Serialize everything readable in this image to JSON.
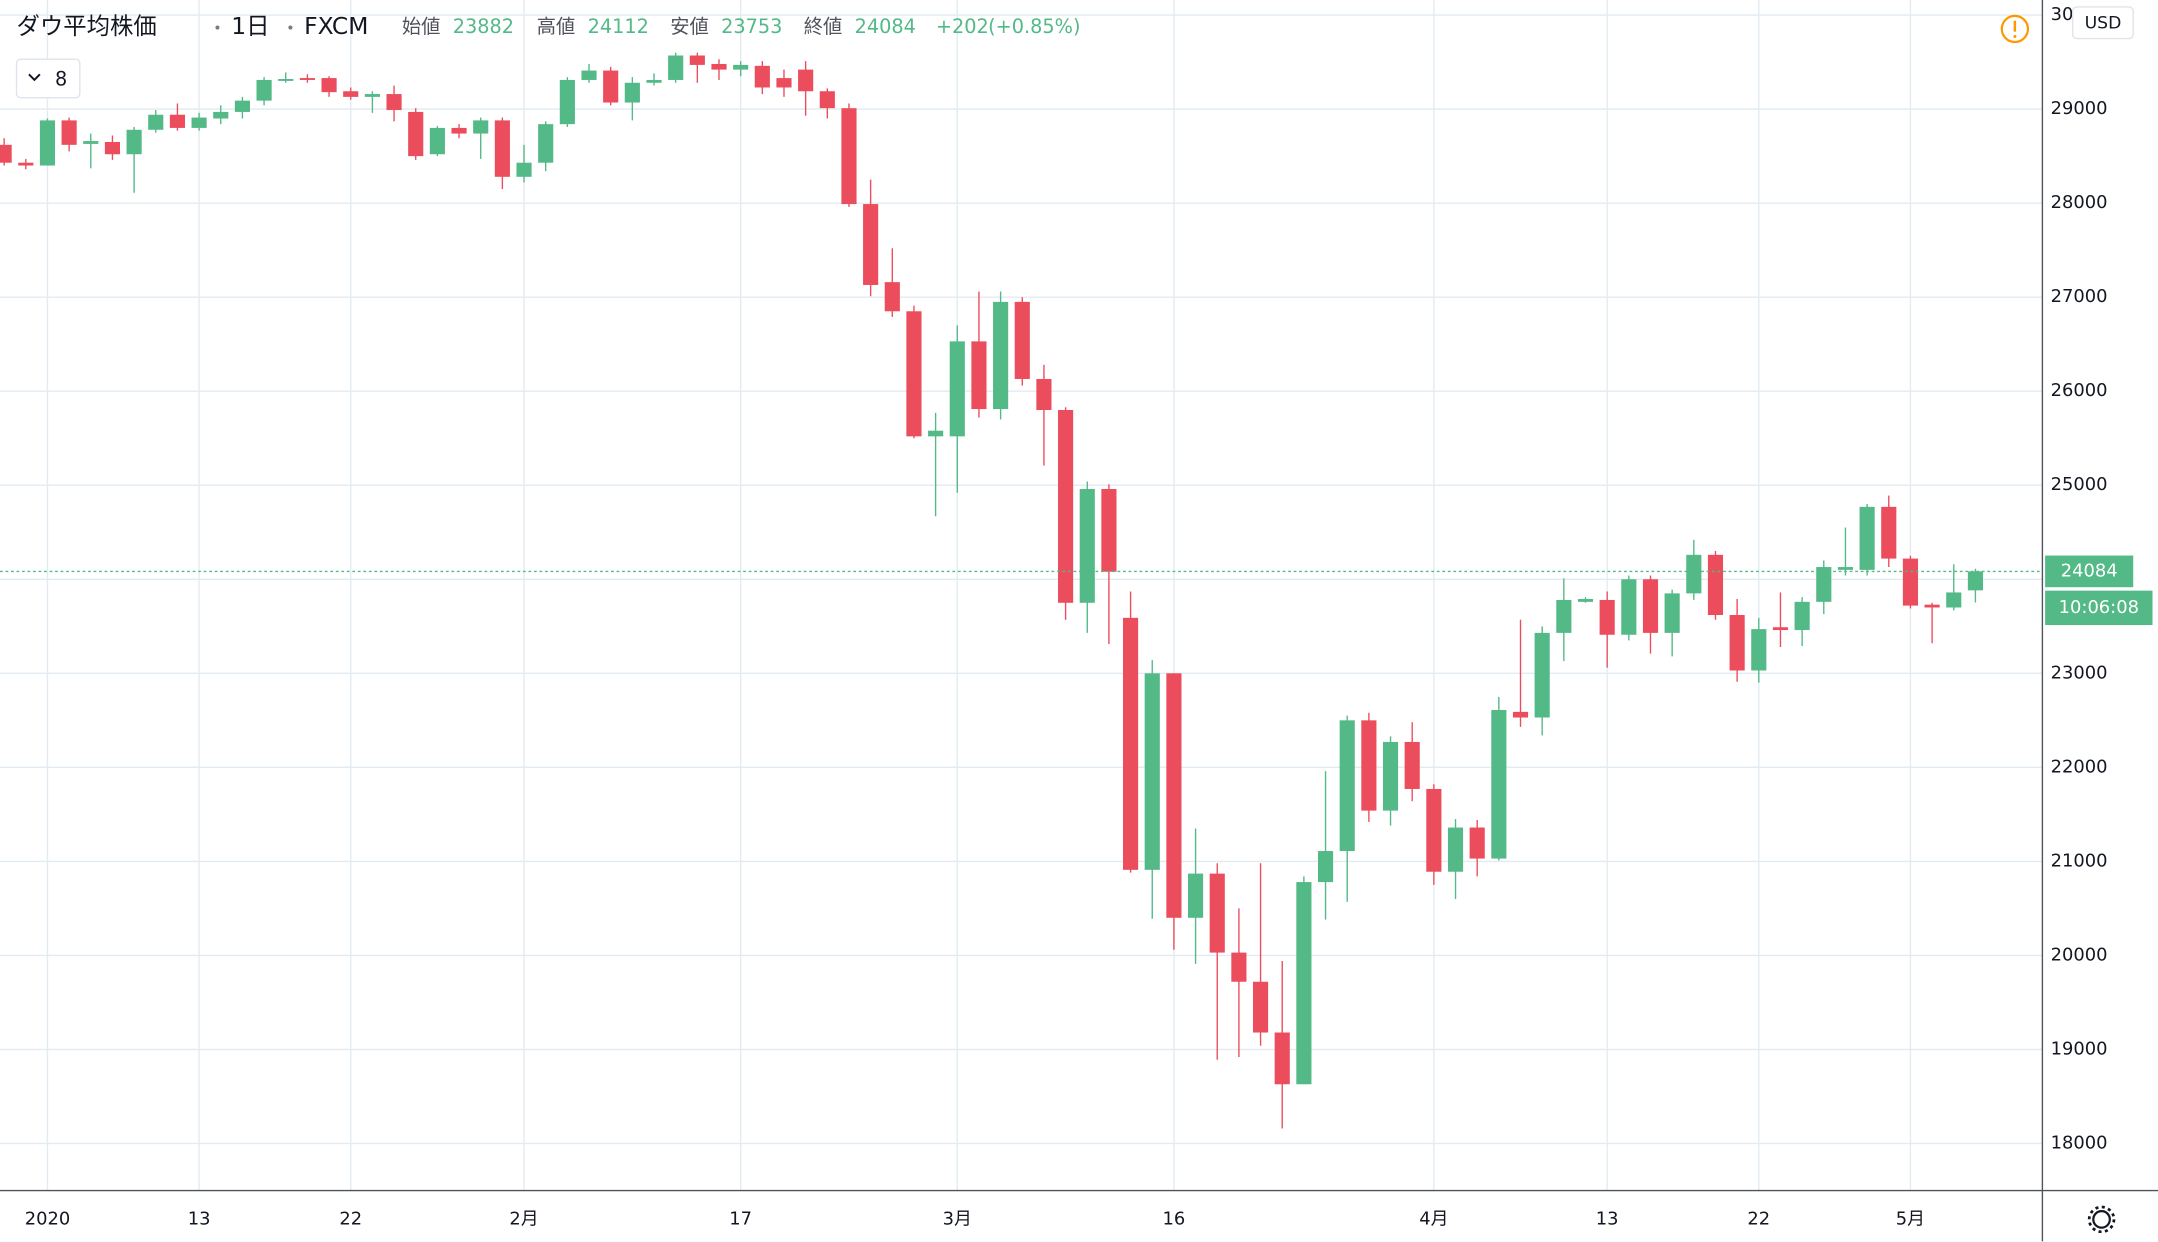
{
  "header": {
    "symbol": "ダウ平均株価",
    "interval": "1日",
    "exchange": "FXCM",
    "fields": [
      {
        "label": "始値",
        "value": 23882
      },
      {
        "label": "高値",
        "value": 24112
      },
      {
        "label": "安値",
        "value": 23753
      },
      {
        "label": "終値",
        "value": 24084
      }
    ],
    "change": "+202",
    "change_pct": "(+0.85%)",
    "indicator_count": 8,
    "currency": "USD"
  },
  "chart_data": {
    "type": "candlestick",
    "up_color": "#53b987",
    "down_color": "#eb4d5c",
    "categories": [
      null,
      null,
      "2020",
      null,
      null,
      null,
      null,
      null,
      null,
      "13",
      null,
      null,
      null,
      null,
      null,
      null,
      "22",
      null,
      null,
      null,
      null,
      null,
      null,
      null,
      "2月",
      null,
      null,
      null,
      null,
      null,
      null,
      null,
      null,
      null,
      "17",
      null,
      null,
      null,
      null,
      null,
      null,
      null,
      null,
      null,
      "3月",
      null,
      null,
      null,
      null,
      null,
      null,
      null,
      null,
      null,
      "16",
      null,
      null,
      null,
      null,
      null,
      null,
      null,
      null,
      null,
      null,
      null,
      "4月",
      null,
      null,
      null,
      null,
      null,
      null,
      null,
      "13",
      null,
      null,
      null,
      null,
      null,
      null,
      "22",
      null,
      null,
      null,
      null,
      null,
      null,
      "5月",
      null,
      null,
      null
    ],
    "open": [
      28620,
      28430,
      28400,
      28880,
      28630,
      28650,
      28520,
      28780,
      28940,
      28800,
      28900,
      28970,
      29090,
      29300,
      29330,
      29330,
      29190,
      29130,
      29160,
      28970,
      28520,
      28800,
      28740,
      28880,
      28280,
      28430,
      28840,
      29310,
      29410,
      29070,
      29280,
      29310,
      29570,
      29480,
      29420,
      29460,
      29330,
      29420,
      29190,
      29010,
      27990,
      27160,
      26850,
      25520,
      25520,
      26530,
      25810,
      26950,
      26130,
      25800,
      23750,
      24960,
      23590,
      20910,
      23000,
      20400,
      20870,
      20030,
      19720,
      19180,
      18630,
      20780,
      21110,
      22500,
      21540,
      22270,
      21770,
      20890,
      21360,
      21030,
      22590,
      22530,
      23430,
      23760,
      23780,
      23410,
      24000,
      23430,
      23850,
      24260,
      23620,
      23030,
      23490,
      23460,
      23760,
      24100,
      24100,
      24770,
      24220,
      23730,
      23700,
      23882
    ],
    "high": [
      28690,
      28470,
      28900,
      28910,
      28740,
      28720,
      28810,
      28990,
      29060,
      28960,
      29040,
      29130,
      29340,
      29390,
      29370,
      29350,
      29230,
      29190,
      29250,
      29010,
      28820,
      28840,
      28910,
      28910,
      28620,
      28870,
      29340,
      29480,
      29450,
      29340,
      29380,
      29600,
      29600,
      29530,
      29510,
      29510,
      29420,
      29510,
      29220,
      29060,
      28250,
      27520,
      26910,
      25770,
      26700,
      27060,
      27060,
      27000,
      26280,
      25830,
      25040,
      25010,
      23870,
      23140,
      23000,
      21350,
      20980,
      20500,
      20980,
      19940,
      20840,
      21960,
      22550,
      22580,
      22330,
      22480,
      21820,
      21450,
      21440,
      22750,
      23570,
      23500,
      24010,
      23810,
      23870,
      24040,
      24040,
      23890,
      24420,
      24300,
      23790,
      23590,
      23860,
      23810,
      24200,
      24550,
      24800,
      24890,
      24250,
      23750,
      24160,
      24112
    ],
    "low": [
      28400,
      28360,
      28400,
      28550,
      28370,
      28460,
      28110,
      28750,
      28770,
      28770,
      28840,
      28900,
      29040,
      29280,
      29280,
      29130,
      29100,
      28960,
      28870,
      28460,
      28500,
      28690,
      28470,
      28150,
      28220,
      28340,
      28810,
      29280,
      29040,
      28880,
      29250,
      29280,
      29280,
      29310,
      29350,
      29160,
      29130,
      28930,
      28900,
      27960,
      27010,
      26790,
      25500,
      24670,
      24920,
      25720,
      25700,
      26060,
      25210,
      23570,
      23430,
      23310,
      20880,
      20390,
      20060,
      19910,
      18890,
      18920,
      19040,
      18160,
      18630,
      20380,
      20570,
      21420,
      21380,
      21640,
      20750,
      20600,
      20840,
      21010,
      22430,
      22340,
      23130,
      23750,
      23060,
      23350,
      23210,
      23180,
      23780,
      23570,
      22910,
      22900,
      23280,
      23290,
      23630,
      24040,
      24040,
      24130,
      23690,
      23320,
      23670,
      23753
    ],
    "close": [
      28430,
      28400,
      28880,
      28620,
      28660,
      28520,
      28780,
      28940,
      28800,
      28910,
      28970,
      29090,
      29310,
      29320,
      29310,
      29180,
      29130,
      29160,
      28990,
      28500,
      28800,
      28740,
      28880,
      28280,
      28430,
      28840,
      29310,
      29410,
      29070,
      29280,
      29310,
      29570,
      29470,
      29420,
      29470,
      29230,
      29230,
      29190,
      29010,
      27990,
      27130,
      26850,
      25520,
      25580,
      26530,
      25810,
      26950,
      26130,
      25800,
      23750,
      24960,
      24080,
      20910,
      23000,
      20400,
      20870,
      20030,
      19720,
      19180,
      18630,
      20780,
      21110,
      22500,
      21540,
      22270,
      21770,
      20890,
      21360,
      21030,
      22610,
      22530,
      23430,
      23780,
      23790,
      23410,
      24000,
      23430,
      23850,
      24260,
      23620,
      23030,
      23470,
      23460,
      23760,
      24130,
      24130,
      24770,
      24220,
      23720,
      23700,
      23860,
      24084
    ],
    "ylim": [
      17500,
      30160
    ],
    "yticks": [
      18000,
      19000,
      20000,
      21000,
      22000,
      23000,
      24000,
      25000,
      26000,
      27000,
      28000,
      29000,
      30000
    ],
    "grid": true,
    "last_price": 24084,
    "countdown": "10:06:08"
  }
}
